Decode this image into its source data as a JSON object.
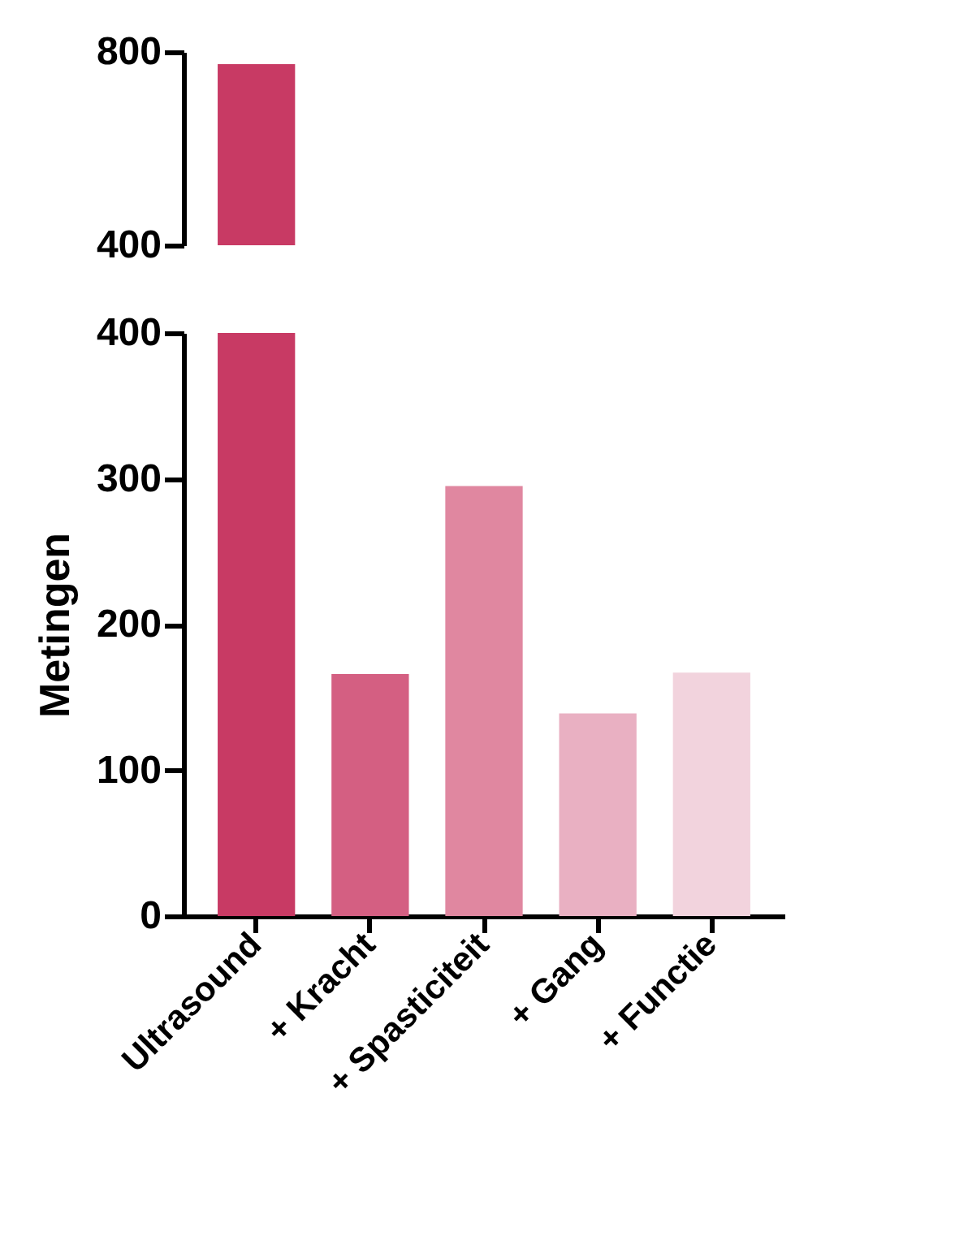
{
  "chart_data": [
    {
      "type": "bar",
      "values": [
        775,
        null,
        null,
        null,
        null
      ],
      "colors": [
        "#c83a64",
        "#d45f82",
        "#e087a0",
        "#e9b0c2",
        "#f2d3dd"
      ],
      "ylim": [
        400,
        800
      ],
      "yticks": [
        400,
        800
      ],
      "tick_labels": "y"
    },
    {
      "type": "bar",
      "ylabel": "Metingen",
      "categories": [
        "Ultrasound",
        "+ Kracht",
        "+ Spasticiteit",
        "+ Gang",
        "+ Functie"
      ],
      "values": [
        400,
        166,
        295,
        139,
        167
      ],
      "colors": [
        "#c83a64",
        "#d45f82",
        "#e087a0",
        "#e9b0c2",
        "#f2d3dd"
      ],
      "ylim": [
        0,
        400
      ],
      "yticks": [
        0,
        100,
        200,
        300,
        400
      ]
    }
  ]
}
